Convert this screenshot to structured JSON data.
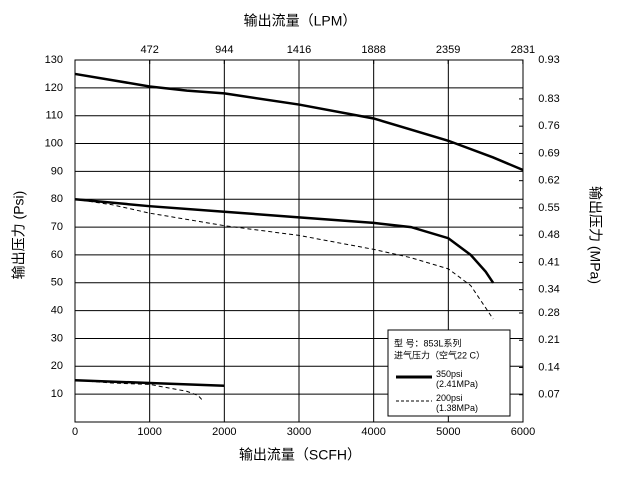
{
  "chart_data": {
    "type": "line",
    "xlabel": "输出流量（SCFH）",
    "x2label": "输出流量（LPM）",
    "ylabel": "输出压力 (Psi)",
    "y2label": "输出压力 (MPa)",
    "xlim": [
      0,
      6000
    ],
    "xticks": [
      0,
      1000,
      2000,
      3000,
      4000,
      5000,
      6000
    ],
    "x2lim": [
      0,
      2832
    ],
    "x2ticks": [
      472,
      944,
      1416,
      1888,
      2359,
      2831
    ],
    "ylim": [
      0,
      130
    ],
    "yticks": [
      10,
      20,
      30,
      40,
      50,
      60,
      70,
      80,
      90,
      100,
      110,
      120,
      130
    ],
    "y2lim": [
      0,
      0.93
    ],
    "y2ticks": [
      0.07,
      0.14,
      0.21,
      0.28,
      0.34,
      0.41,
      0.48,
      0.55,
      0.62,
      0.69,
      0.76,
      0.83,
      0.93
    ],
    "grid": true,
    "legend_title": [
      "型    号：853L系列",
      "进气压力（空气22 C）"
    ],
    "series": [
      {
        "name": "350psi (2.41MPa)",
        "color": "#000000",
        "dash": false,
        "x": [
          0,
          1000,
          1500,
          2000,
          3000,
          4000,
          5000,
          5600,
          6000,
          null,
          0,
          1000,
          2000,
          3000,
          4000,
          4500,
          5000,
          5300,
          5500,
          5600,
          null,
          0,
          1000,
          2000
        ],
        "values": [
          125,
          120.5,
          119,
          118,
          114,
          109,
          101,
          95,
          90.5,
          null,
          80,
          77.5,
          75.5,
          73.5,
          71.5,
          70,
          66,
          60,
          54,
          50,
          null,
          15,
          14,
          13
        ]
      },
      {
        "name": "200psi (1.38MPa)",
        "color": "#000000",
        "dash": true,
        "x": [
          0,
          500,
          1000,
          2000,
          3000,
          4000,
          4500,
          5000,
          5300,
          5500,
          5600,
          null,
          0,
          500,
          1000,
          1500,
          1650,
          1700
        ],
        "values": [
          80,
          78,
          75,
          70.5,
          67,
          62,
          59,
          55,
          49,
          41,
          37,
          null,
          15,
          14,
          13.5,
          11,
          9.5,
          8
        ]
      }
    ]
  }
}
